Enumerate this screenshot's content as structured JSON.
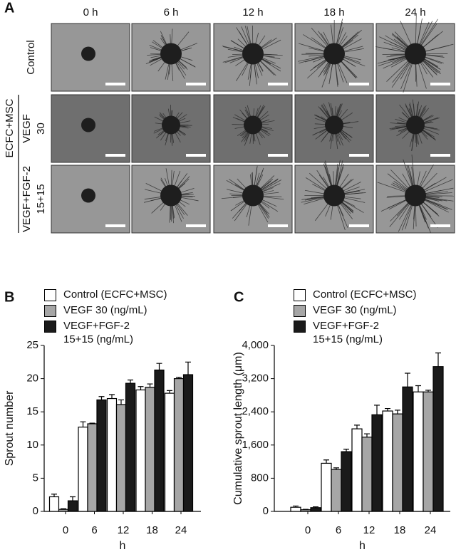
{
  "panel_a": {
    "label": "A",
    "columns": [
      "0 h",
      "6 h",
      "12 h",
      "18 h",
      "24 h"
    ],
    "group_label": "ECFC+MSC",
    "rows": [
      [
        "Control"
      ],
      [
        "VEGF",
        "30"
      ],
      [
        "VEGF+FGF-2",
        "15+15"
      ]
    ]
  },
  "chart_data": [
    {
      "type": "bar",
      "panel_label": "B",
      "ylabel": "Sprout number",
      "xlabel": "h",
      "categories": [
        "0",
        "6",
        "12",
        "18",
        "24"
      ],
      "series": [
        {
          "name": "Control (ECFC+MSC)",
          "color": "#ffffff",
          "values": [
            2.2,
            12.7,
            17.0,
            18.3,
            17.8
          ],
          "errors": [
            0.4,
            0.8,
            0.6,
            0.5,
            0.4
          ]
        },
        {
          "name": "VEGF 30 (ng/mL)",
          "color": "#a6a6a6",
          "values": [
            0.3,
            13.2,
            16.1,
            18.7,
            20.0
          ],
          "errors": [
            0.1,
            0.1,
            0.7,
            0.5,
            0.2
          ]
        },
        {
          "name": "VEGF+FGF-2\n15+15 (ng/mL)",
          "color": "#1a1a1a",
          "values": [
            1.6,
            16.8,
            19.3,
            21.3,
            20.6
          ],
          "errors": [
            0.6,
            0.5,
            0.5,
            1.0,
            1.9
          ]
        }
      ],
      "ylim": [
        0,
        25
      ],
      "yticks": [
        0,
        5,
        10,
        15,
        20,
        25
      ]
    },
    {
      "type": "bar",
      "panel_label": "C",
      "ylabel": "Cumulative sprout length (μm)",
      "xlabel": "h",
      "categories": [
        "0",
        "6",
        "12",
        "18",
        "24"
      ],
      "series": [
        {
          "name": "Control (ECFC+MSC)",
          "color": "#ffffff",
          "values": [
            100,
            1160,
            1990,
            2420,
            2880
          ],
          "errors": [
            30,
            80,
            90,
            60,
            150
          ]
        },
        {
          "name": "VEGF 30 (ng/mL)",
          "color": "#a6a6a6",
          "values": [
            40,
            1010,
            1790,
            2350,
            2880
          ],
          "errors": [
            10,
            40,
            80,
            90,
            40
          ]
        },
        {
          "name": "VEGF+FGF-2\n15+15 (ng/mL)",
          "color": "#1a1a1a",
          "values": [
            90,
            1440,
            2330,
            3000,
            3490
          ],
          "errors": [
            20,
            60,
            230,
            330,
            330
          ]
        }
      ],
      "ylim": [
        0,
        4000
      ],
      "yticks": [
        0,
        800,
        {
          "value": 1600,
          "label": "1,600"
        },
        {
          "value": 2400,
          "label": "2,400"
        },
        {
          "value": 3200,
          "label": "3,200"
        },
        {
          "value": 4000,
          "label": "4,000"
        }
      ]
    }
  ]
}
